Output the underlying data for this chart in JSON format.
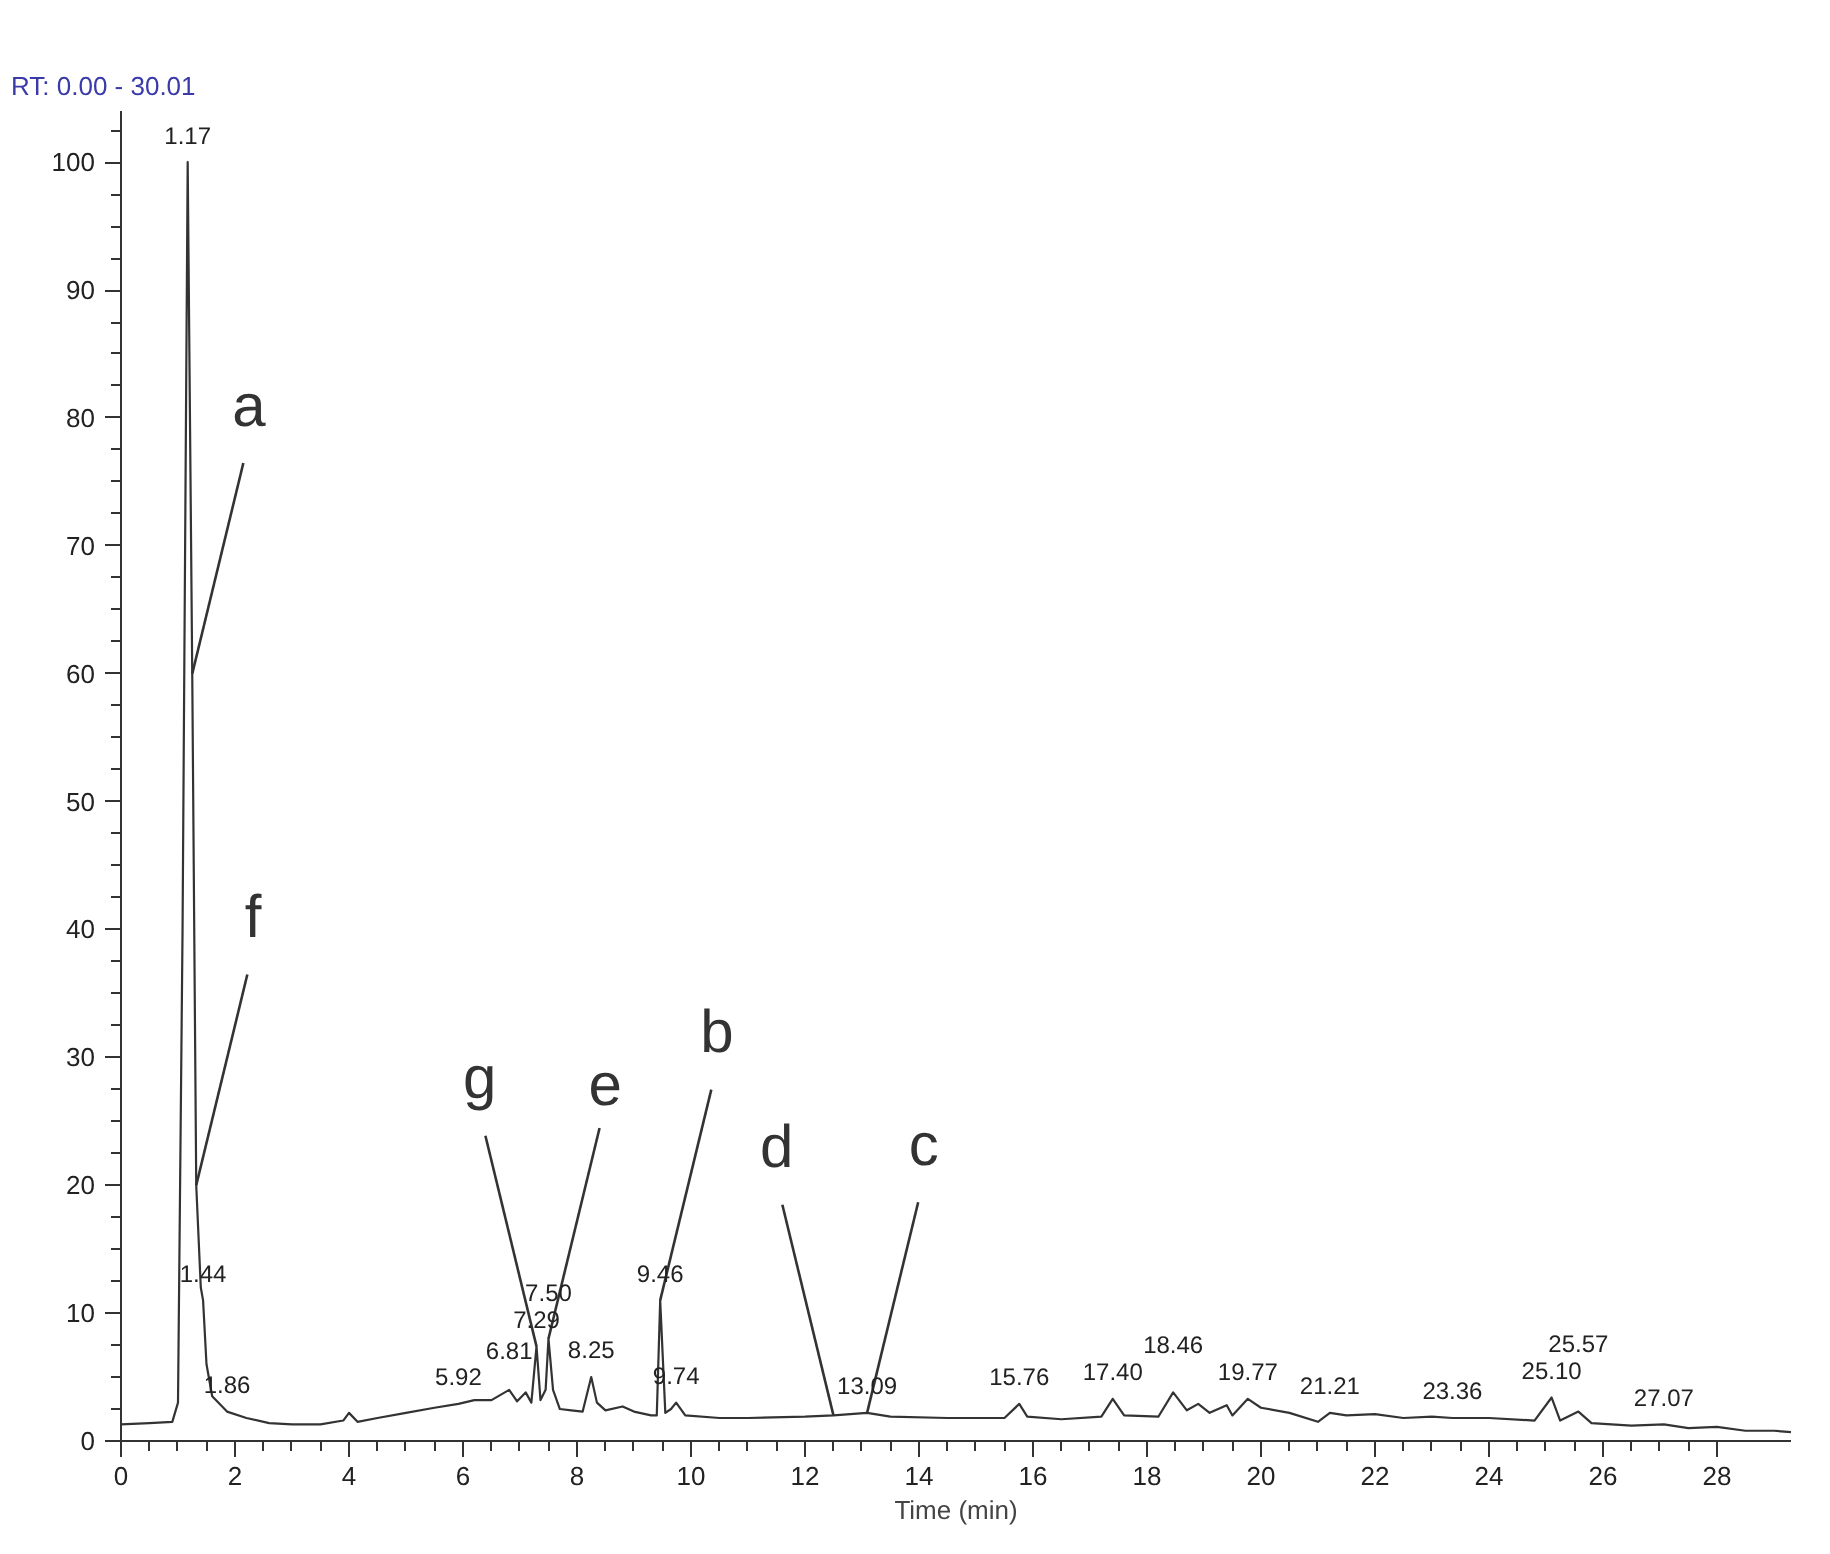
{
  "chart_data": {
    "type": "line",
    "title": "RT: 0.00 - 30.01",
    "xlabel": "Time (min)",
    "xlim": [
      0,
      29.3
    ],
    "ylim": [
      0,
      104
    ],
    "xticks": [
      0,
      2,
      4,
      6,
      8,
      10,
      12,
      14,
      16,
      18,
      20,
      22,
      24,
      26,
      28
    ],
    "yticks": [
      0,
      10,
      20,
      30,
      40,
      50,
      60,
      70,
      80,
      90,
      100
    ],
    "grid": false,
    "marker": "none",
    "line_style": "solid",
    "series": [
      {
        "color": "#333333",
        "x": [
          0,
          0.5,
          0.9,
          1.0,
          1.08,
          1.17,
          1.25,
          1.32,
          1.4,
          1.44,
          1.5,
          1.6,
          1.86,
          2.2,
          2.6,
          3.0,
          3.5,
          3.9,
          4.0,
          4.15,
          4.5,
          5.0,
          5.5,
          5.92,
          6.2,
          6.5,
          6.81,
          6.95,
          7.1,
          7.2,
          7.29,
          7.36,
          7.45,
          7.5,
          7.58,
          7.7,
          7.9,
          8.1,
          8.25,
          8.35,
          8.5,
          8.8,
          9.0,
          9.3,
          9.4,
          9.46,
          9.55,
          9.65,
          9.74,
          9.9,
          10.5,
          11.0,
          12.0,
          12.5,
          13.09,
          13.5,
          14.5,
          15.5,
          15.76,
          15.9,
          16.5,
          17.2,
          17.4,
          17.6,
          18.2,
          18.46,
          18.7,
          18.9,
          19.1,
          19.4,
          19.5,
          19.77,
          20.0,
          20.5,
          21.0,
          21.21,
          21.5,
          22.0,
          22.5,
          23.0,
          23.36,
          24.0,
          24.8,
          25.1,
          25.25,
          25.57,
          25.8,
          26.5,
          27.07,
          27.5,
          28.0,
          28.5,
          29.0,
          29.3
        ],
        "values": [
          1.3,
          1.4,
          1.5,
          3,
          40,
          100,
          60,
          20,
          12,
          11,
          6,
          3.5,
          2.3,
          1.8,
          1.4,
          1.3,
          1.3,
          1.6,
          2.2,
          1.5,
          1.8,
          2.2,
          2.6,
          2.9,
          3.2,
          3.2,
          4.0,
          3.1,
          3.8,
          3.0,
          7.4,
          3.2,
          4,
          8.0,
          4,
          2.5,
          2.4,
          2.3,
          5.0,
          3.0,
          2.4,
          2.7,
          2.3,
          2.0,
          2.0,
          11.0,
          2.2,
          2.5,
          3.0,
          2.0,
          1.8,
          1.8,
          1.9,
          2.0,
          2.2,
          1.9,
          1.8,
          1.8,
          2.9,
          1.9,
          1.7,
          1.9,
          3.3,
          2.0,
          1.9,
          3.8,
          2.4,
          2.9,
          2.2,
          2.8,
          2.0,
          3.3,
          2.6,
          2.2,
          1.5,
          2.2,
          2.0,
          2.1,
          1.8,
          1.9,
          1.8,
          1.8,
          1.6,
          3.4,
          1.6,
          2.3,
          1.4,
          1.2,
          1.3,
          1.0,
          1.1,
          0.8,
          0.8,
          0.7
        ]
      }
    ],
    "annotations": [
      {
        "text": "1.17",
        "x": 1.17,
        "y": 100
      },
      {
        "text": "1.44",
        "x": 1.44,
        "y": 11
      },
      {
        "text": "1.86",
        "x": 1.86,
        "y": 2.3
      },
      {
        "text": "5.92",
        "x": 5.92,
        "y": 2.9
      },
      {
        "text": "6.81",
        "x": 6.81,
        "y": 4.0
      },
      {
        "text": "7.29",
        "x": 7.29,
        "y": 7.4
      },
      {
        "text": "7.50",
        "x": 7.5,
        "y": 8.0
      },
      {
        "text": "8.25",
        "x": 8.25,
        "y": 5.0
      },
      {
        "text": "9.46",
        "x": 9.46,
        "y": 11.0
      },
      {
        "text": "9.74",
        "x": 9.74,
        "y": 3.0
      },
      {
        "text": "13.09",
        "x": 13.09,
        "y": 2.2
      },
      {
        "text": "15.76",
        "x": 15.76,
        "y": 2.9
      },
      {
        "text": "17.40",
        "x": 17.4,
        "y": 3.3
      },
      {
        "text": "18.46",
        "x": 18.46,
        "y": 3.8
      },
      {
        "text": "19.77",
        "x": 19.77,
        "y": 3.3
      },
      {
        "text": "21.21",
        "x": 21.21,
        "y": 2.2
      },
      {
        "text": "23.36",
        "x": 23.36,
        "y": 1.8
      },
      {
        "text": "25.10",
        "x": 25.1,
        "y": 3.4
      },
      {
        "text": "25.57",
        "x": 25.57,
        "y": 2.3
      },
      {
        "text": "27.07",
        "x": 27.07,
        "y": 1.3
      },
      {
        "text": "a",
        "x": 1.25,
        "y": 60
      },
      {
        "text": "f",
        "x": 1.32,
        "y": 20
      },
      {
        "text": "g",
        "x": 7.29,
        "y": 7.4
      },
      {
        "text": "e",
        "x": 7.5,
        "y": 8.0
      },
      {
        "text": "b",
        "x": 9.46,
        "y": 11.0
      },
      {
        "text": "d",
        "x": 12.5,
        "y": 2.0
      },
      {
        "text": "c",
        "x": 13.09,
        "y": 2.2
      }
    ]
  }
}
